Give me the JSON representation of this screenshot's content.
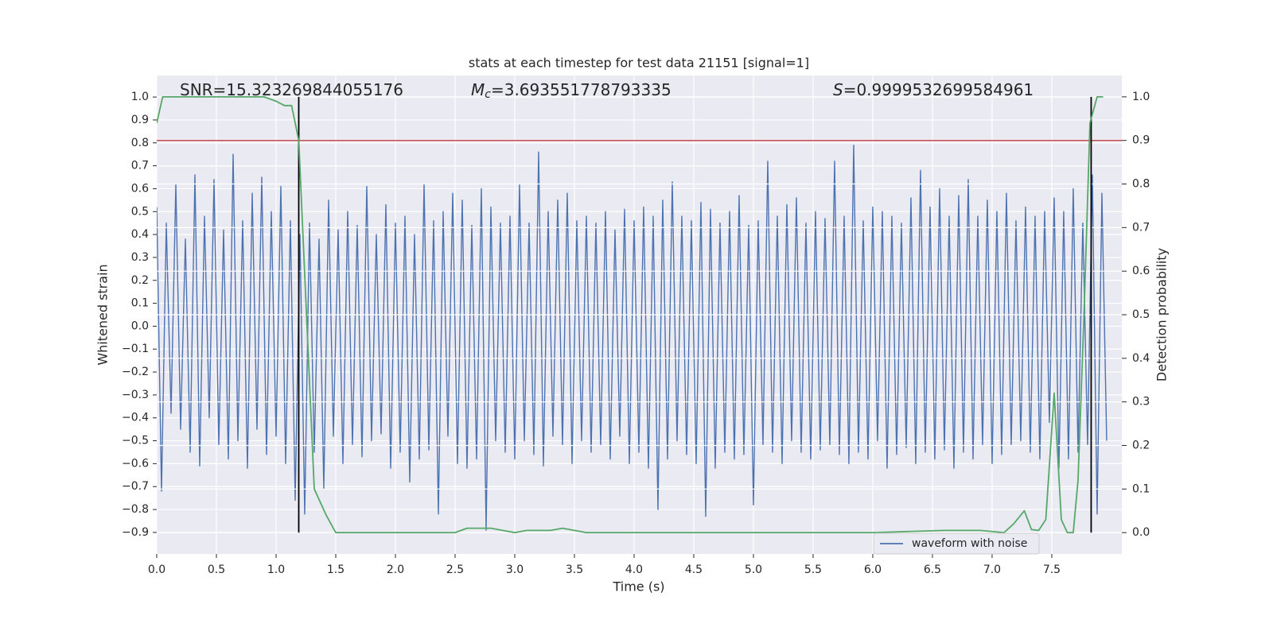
{
  "chart_data": {
    "type": "line",
    "title": "stats at each timestep for test data 21151 [signal=1]",
    "xlabel": "Time (s)",
    "ylabel": "Whitened strain",
    "y2label": "Detection probability",
    "annotations": [
      {
        "text": "SNR=15.323269844055176"
      },
      {
        "symbol": "M",
        "subscript": "c",
        "text": "=3.693551778793335"
      },
      {
        "symbol": "S",
        "text": "=0.9999532699584961"
      }
    ],
    "xlim": [
      0,
      8.087
    ],
    "ylim": [
      -0.994,
      1.094
    ],
    "y2lim": [
      -0.049,
      1.049
    ],
    "xticks": [
      {
        "value": 0,
        "label": "0.0"
      },
      0.5,
      {
        "value": 1,
        "label": "1.0"
      },
      1.5,
      {
        "value": 2,
        "label": "2.0"
      },
      2.5,
      {
        "value": 3,
        "label": "3.0"
      },
      3.5,
      {
        "value": 4,
        "label": "4.0"
      },
      4.5,
      {
        "value": 5,
        "label": "5.0"
      },
      5.5,
      {
        "value": 6,
        "label": "6.0"
      },
      6.5,
      {
        "value": 7,
        "label": "7.0"
      },
      7.5
    ],
    "yticks": [
      {
        "value": -0.9,
        "label": "−0.9"
      },
      {
        "value": -0.8,
        "label": "−0.8"
      },
      {
        "value": -0.7,
        "label": "−0.7"
      },
      {
        "value": -0.6,
        "label": "−0.6"
      },
      {
        "value": -0.5,
        "label": "−0.5"
      },
      {
        "value": -0.4,
        "label": "−0.4"
      },
      {
        "value": -0.3,
        "label": "−0.3"
      },
      {
        "value": -0.2,
        "label": "−0.2"
      },
      {
        "value": -0.1,
        "label": "−0.1"
      },
      {
        "value": 0,
        "label": "0.0"
      },
      0.1,
      0.2,
      0.3,
      0.4,
      0.5,
      0.6,
      0.7,
      0.8,
      0.9,
      {
        "value": 1,
        "label": "1.0"
      }
    ],
    "y2ticks": [
      {
        "value": 0,
        "label": "0.0"
      },
      0.1,
      0.2,
      0.3,
      0.4,
      0.5,
      0.6,
      0.7,
      0.8,
      0.9,
      {
        "value": 1,
        "label": "1.0"
      }
    ],
    "grid": true,
    "legend": "lower right",
    "series": [
      {
        "name": "waveform with noise",
        "color": "#4c72b0",
        "x": [
          0,
          0.04,
          0.08,
          0.12,
          0.16,
          0.2,
          0.24,
          0.28,
          0.32,
          0.36,
          0.4,
          0.44,
          0.48,
          0.52,
          0.56,
          0.6,
          0.64,
          0.68,
          0.72,
          0.76,
          0.8,
          0.84,
          0.88,
          0.92,
          0.96,
          1.0,
          1.04,
          1.08,
          1.12,
          1.16,
          1.2,
          1.24,
          1.28,
          1.32,
          1.36,
          1.4,
          1.44,
          1.48,
          1.52,
          1.56,
          1.6,
          1.64,
          1.68,
          1.72,
          1.76,
          1.8,
          1.84,
          1.88,
          1.92,
          1.96,
          2.0,
          2.04,
          2.08,
          2.12,
          2.16,
          2.2,
          2.24,
          2.28,
          2.32,
          2.36,
          2.4,
          2.44,
          2.48,
          2.52,
          2.56,
          2.6,
          2.64,
          2.68,
          2.72,
          2.76,
          2.8,
          2.84,
          2.88,
          2.92,
          2.96,
          3.0,
          3.04,
          3.08,
          3.12,
          3.16,
          3.2,
          3.24,
          3.28,
          3.32,
          3.36,
          3.4,
          3.44,
          3.48,
          3.52,
          3.56,
          3.6,
          3.64,
          3.68,
          3.72,
          3.76,
          3.8,
          3.84,
          3.88,
          3.92,
          3.96,
          4.0,
          4.04,
          4.08,
          4.12,
          4.16,
          4.2,
          4.24,
          4.28,
          4.32,
          4.36,
          4.4,
          4.44,
          4.48,
          4.52,
          4.56,
          4.6,
          4.64,
          4.68,
          4.72,
          4.76,
          4.8,
          4.84,
          4.88,
          4.92,
          4.96,
          5.0,
          5.04,
          5.08,
          5.12,
          5.16,
          5.2,
          5.24,
          5.28,
          5.32,
          5.36,
          5.4,
          5.44,
          5.48,
          5.52,
          5.56,
          5.6,
          5.64,
          5.68,
          5.72,
          5.76,
          5.8,
          5.84,
          5.88,
          5.92,
          5.96,
          6.0,
          6.04,
          6.08,
          6.12,
          6.16,
          6.2,
          6.24,
          6.28,
          6.32,
          6.36,
          6.4,
          6.44,
          6.48,
          6.52,
          6.56,
          6.6,
          6.64,
          6.68,
          6.72,
          6.76,
          6.8,
          6.84,
          6.88,
          6.92,
          6.96,
          7.0,
          7.04,
          7.08,
          7.12,
          7.16,
          7.2,
          7.24,
          7.28,
          7.32,
          7.36,
          7.4,
          7.44,
          7.48,
          7.52,
          7.56,
          7.6,
          7.64,
          7.68,
          7.72,
          7.76,
          7.8,
          7.84,
          7.88,
          7.92,
          7.96
        ],
        "values": [
          0.52,
          -0.72,
          0.45,
          -0.38,
          0.62,
          -0.45,
          0.38,
          -0.55,
          0.66,
          -0.61,
          0.48,
          -0.4,
          0.64,
          -0.52,
          0.42,
          -0.58,
          0.75,
          -0.5,
          0.46,
          -0.62,
          0.58,
          -0.45,
          0.65,
          -0.56,
          0.5,
          -0.48,
          0.61,
          -0.6,
          0.46,
          -0.76,
          0.4,
          -0.82,
          0.45,
          -0.55,
          0.38,
          -0.71,
          0.55,
          -0.48,
          0.42,
          -0.6,
          0.5,
          -0.52,
          0.44,
          -0.57,
          0.61,
          -0.5,
          0.4,
          -0.47,
          0.53,
          -0.62,
          0.45,
          -0.55,
          0.48,
          -0.68,
          0.4,
          -0.58,
          0.62,
          -0.54,
          0.46,
          -0.82,
          0.5,
          -0.48,
          0.58,
          -0.6,
          0.55,
          -0.62,
          0.44,
          -0.58,
          0.6,
          -0.89,
          0.52,
          -0.5,
          0.45,
          -0.55,
          0.48,
          -0.58,
          0.62,
          -0.5,
          0.45,
          -0.56,
          0.76,
          -0.61,
          0.5,
          -0.48,
          0.55,
          -0.52,
          0.58,
          -0.6,
          0.46,
          -0.5,
          0.48,
          -0.55,
          0.45,
          -0.52,
          0.5,
          -0.58,
          0.42,
          -0.48,
          0.51,
          -0.6,
          0.46,
          -0.55,
          0.52,
          -0.62,
          0.48,
          -0.8,
          0.55,
          -0.58,
          0.63,
          -0.5,
          0.48,
          -0.56,
          0.46,
          -0.6,
          0.54,
          -0.83,
          0.51,
          -0.62,
          0.45,
          -0.55,
          0.5,
          -0.58,
          0.57,
          -0.56,
          0.44,
          -0.78,
          0.46,
          -0.52,
          0.72,
          -0.55,
          0.48,
          -0.6,
          0.53,
          -0.5,
          0.56,
          -0.55,
          0.45,
          -0.58,
          0.5,
          -0.54,
          0.47,
          -0.52,
          0.72,
          -0.56,
          0.48,
          -0.6,
          0.79,
          -0.55,
          0.46,
          -0.58,
          0.52,
          -0.5,
          0.5,
          -0.62,
          0.48,
          -0.56,
          0.45,
          -0.53,
          0.56,
          -0.6,
          0.68,
          -0.55,
          0.52,
          -0.58,
          0.6,
          -0.54,
          0.48,
          -0.62,
          0.57,
          -0.55,
          0.64,
          -0.58,
          0.48,
          -0.52,
          0.55,
          -0.6,
          0.5,
          -0.56,
          0.58,
          -0.52,
          0.46,
          -0.5,
          0.52,
          -0.55,
          0.48,
          -0.58,
          0.5,
          -0.42,
          0.56,
          -0.62,
          0.5,
          -0.58,
          0.6,
          -0.55,
          0.45,
          -0.52,
          0.66,
          -0.82,
          0.58,
          -0.5
        ]
      },
      {
        "color": "#55a868",
        "axis": "y2",
        "x": [
          0,
          0.05,
          0.2,
          0.5,
          0.9,
          1.0,
          1.07,
          1.13,
          1.19,
          1.32,
          1.42,
          1.5,
          1.6,
          2.0,
          2.5,
          2.6,
          2.8,
          3.0,
          3.1,
          3.3,
          3.4,
          3.6,
          4.0,
          4.4,
          4.8,
          5.2,
          6.0,
          6.6,
          6.9,
          7.1,
          7.18,
          7.27,
          7.33,
          7.39,
          7.45,
          7.52,
          7.58,
          7.63,
          7.68,
          7.72,
          7.77,
          7.82,
          7.88,
          7.93
        ],
        "values": [
          0.94,
          1.0,
          1.0,
          1.0,
          1.0,
          0.99,
          0.98,
          0.98,
          0.9,
          0.1,
          0.04,
          0.0,
          0.0,
          0.0,
          0.0,
          0.01,
          0.01,
          0.0,
          0.005,
          0.005,
          0.01,
          0.0,
          0.0,
          0.0,
          0.0,
          0.0,
          0.0,
          0.005,
          0.005,
          0.0,
          0.02,
          0.05,
          0.007,
          0.005,
          0.03,
          0.32,
          0.03,
          0.0,
          0.0,
          0.12,
          0.5,
          0.94,
          1.0,
          1.0
        ]
      }
    ],
    "hline": {
      "y": 0.9,
      "axis": "y2",
      "color": "#c44e52"
    },
    "vlines": {
      "x": [
        1.19,
        7.83
      ],
      "ymin": 0,
      "ymax": 1,
      "axis": "y2",
      "color": "#000000"
    }
  }
}
